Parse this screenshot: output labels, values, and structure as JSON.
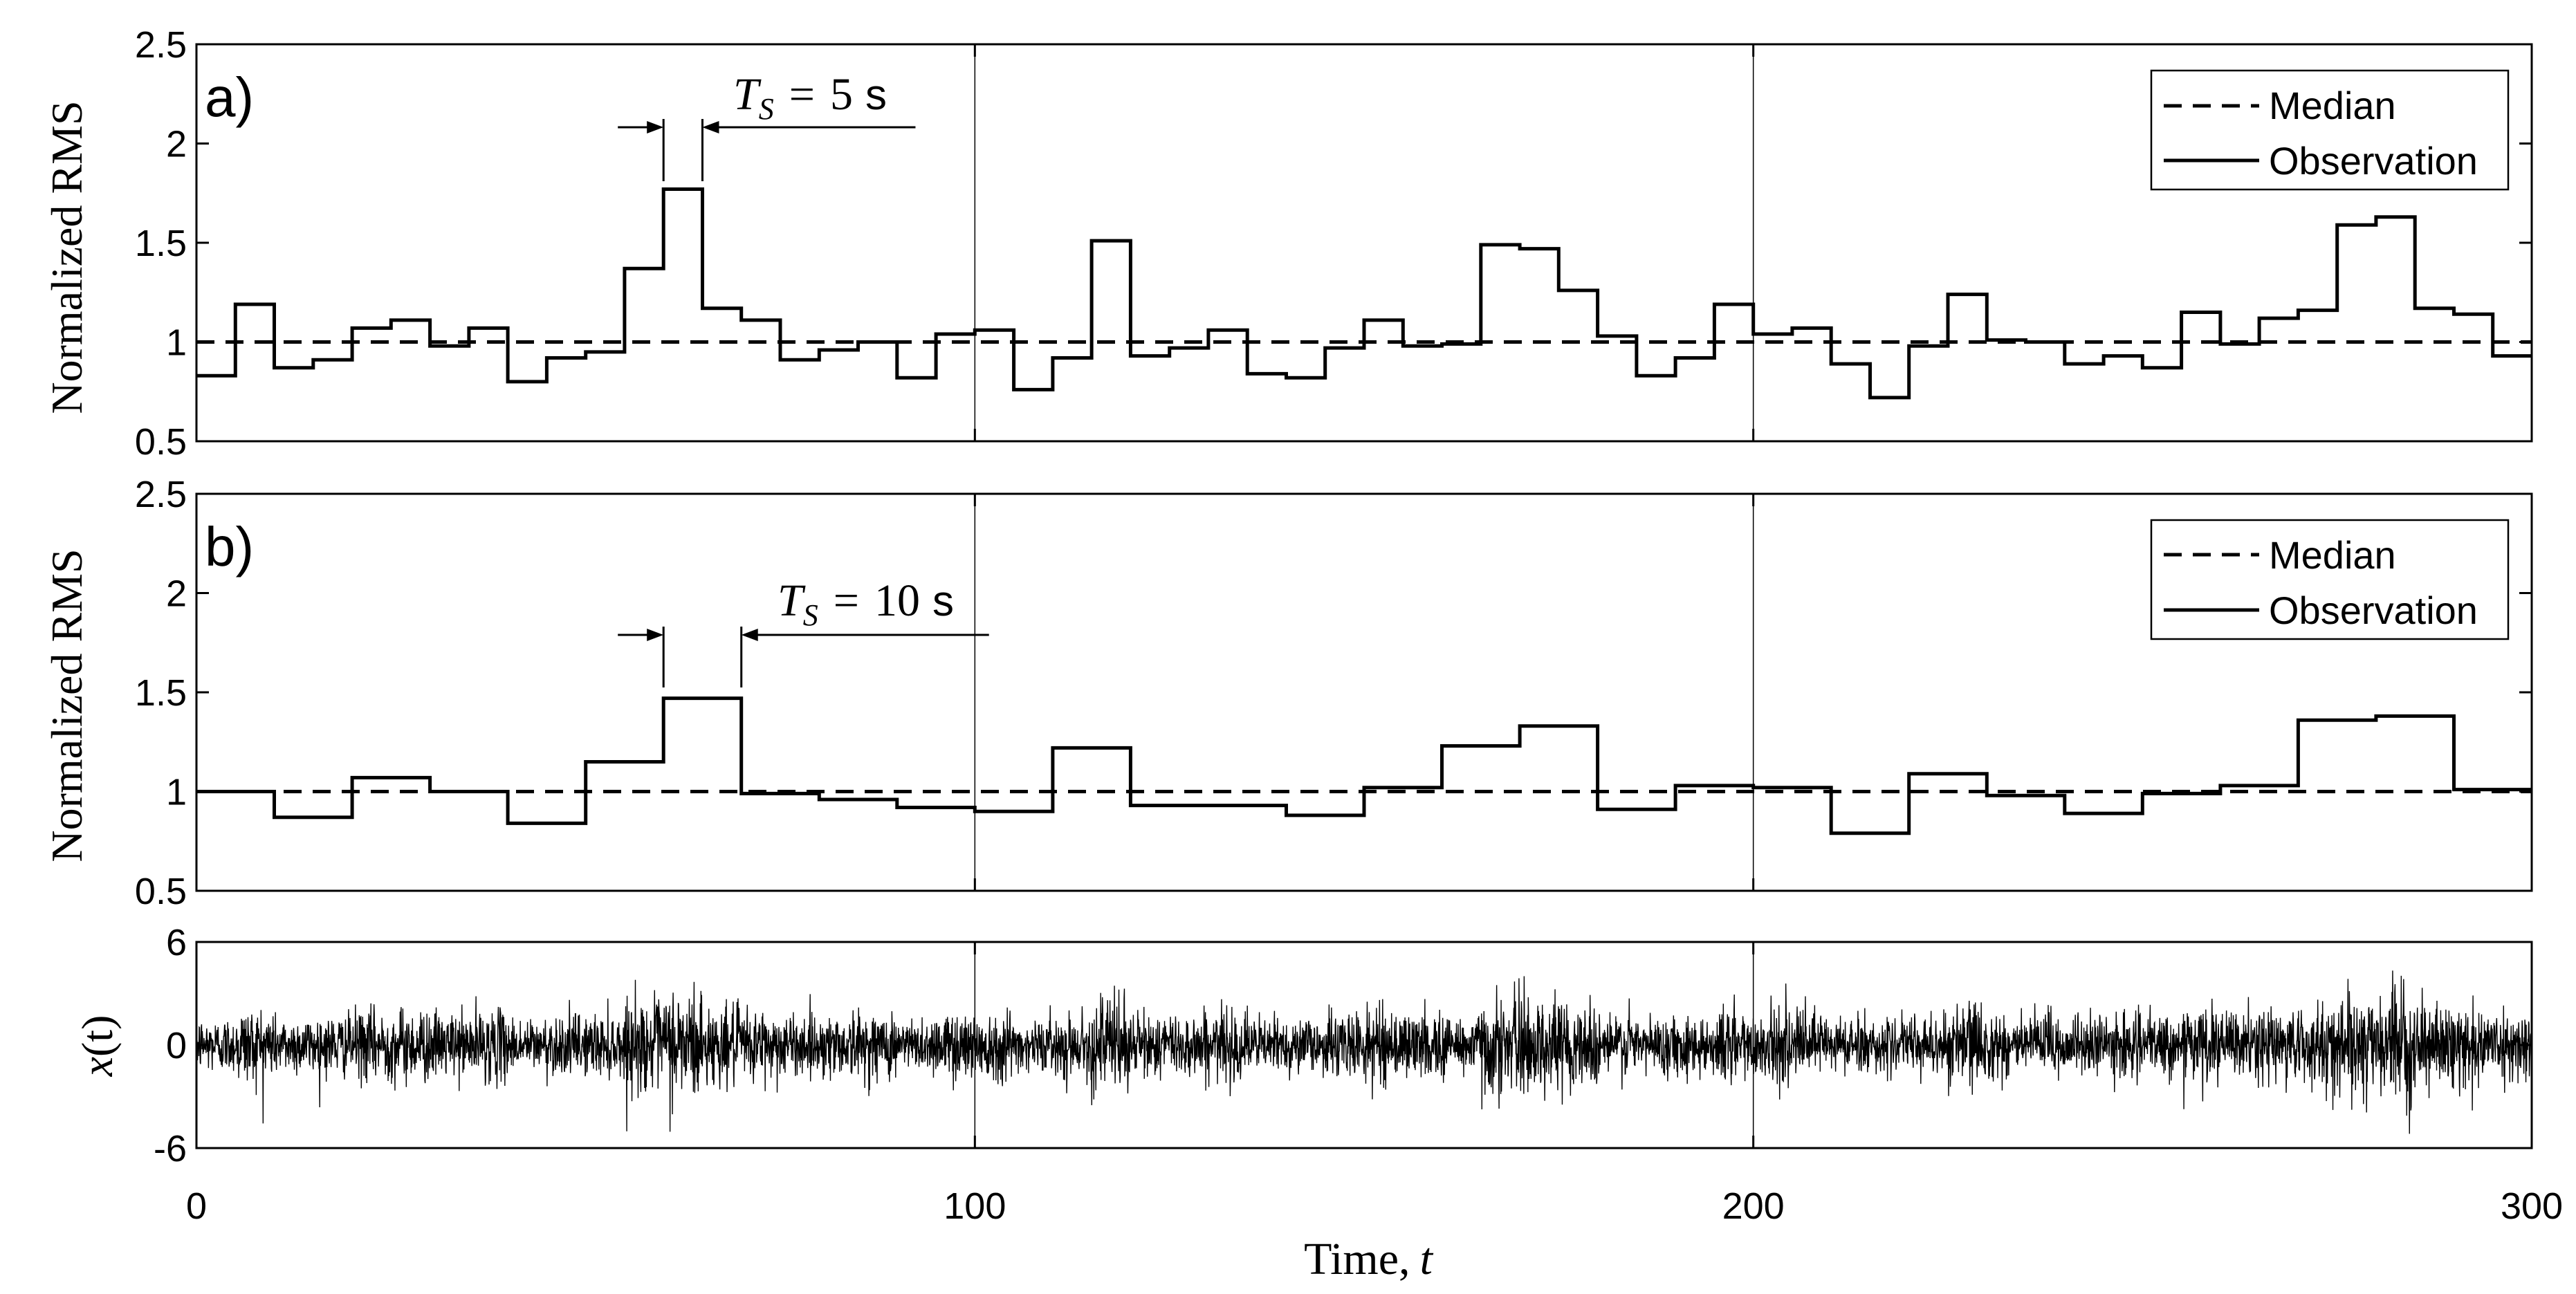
{
  "chart_data": [
    {
      "type": "line",
      "panel_label": "a)",
      "ylabel": "Normalized RMS",
      "xlim": [
        0,
        300
      ],
      "ylim": [
        0.5,
        2.5
      ],
      "yticks": [
        "0.5",
        "1",
        "1.5",
        "2",
        "2.5"
      ],
      "grid": "x",
      "window_seconds": 5,
      "annotation": {
        "symbol": "T",
        "subscript": "S",
        "equals": "=",
        "value": "5",
        "unit": "s"
      },
      "legend": {
        "position": "top-right",
        "entries": [
          "Median",
          "Observation"
        ]
      },
      "median": 1.0,
      "series": [
        {
          "name": "Observation",
          "style": "stairs",
          "values": [
            0.83,
            1.19,
            0.87,
            0.91,
            1.07,
            1.11,
            0.98,
            1.07,
            0.8,
            0.92,
            0.95,
            1.37,
            1.77,
            1.17,
            1.11,
            0.91,
            0.96,
            1.0,
            0.82,
            1.04,
            1.06,
            0.76,
            0.92,
            1.51,
            0.93,
            0.97,
            1.06,
            0.84,
            0.82,
            0.97,
            1.11,
            0.98,
            0.99,
            1.49,
            1.47,
            1.26,
            1.03,
            0.83,
            0.92,
            1.19,
            1.04,
            1.07,
            0.89,
            0.72,
            0.98,
            1.24,
            1.01,
            1.0,
            0.89,
            0.93,
            0.87,
            1.15,
            0.99,
            1.12,
            1.16,
            1.59,
            1.63,
            1.17,
            1.14,
            0.93
          ]
        }
      ]
    },
    {
      "type": "line",
      "panel_label": "b)",
      "ylabel": "Normalized RMS",
      "xlim": [
        0,
        300
      ],
      "ylim": [
        0.5,
        2.5
      ],
      "yticks": [
        "0.5",
        "1",
        "1.5",
        "2",
        "2.5"
      ],
      "grid": "x",
      "window_seconds": 10,
      "annotation": {
        "symbol": "T",
        "subscript": "S",
        "equals": "=",
        "value": "10",
        "unit": "s"
      },
      "legend": {
        "position": "top-right",
        "entries": [
          "Median",
          "Observation"
        ]
      },
      "median": 1.0,
      "series": [
        {
          "name": "Observation",
          "style": "stairs",
          "values": [
            1.0,
            0.87,
            1.07,
            1.0,
            0.84,
            1.15,
            1.47,
            0.99,
            0.96,
            0.92,
            0.9,
            1.22,
            0.93,
            0.93,
            0.88,
            1.02,
            1.23,
            1.33,
            0.91,
            1.03,
            1.02,
            0.79,
            1.09,
            0.98,
            0.89,
            0.99,
            1.03,
            1.36,
            1.38,
            1.01
          ]
        }
      ]
    },
    {
      "type": "line",
      "ylabel": "x(t)",
      "ylabel_var": "x",
      "ylabel_arg": "(t)",
      "xlabel": "Time, t",
      "xlabel_text": "Time,",
      "xlabel_var": "t",
      "xlim": [
        0,
        300
      ],
      "ylim": [
        -6,
        6
      ],
      "yticks": [
        "-6",
        "0",
        "6"
      ],
      "xticks": [
        "0",
        "100",
        "200",
        "300"
      ],
      "grid": "x",
      "series": [
        {
          "name": "x(t)",
          "style": "noise",
          "envelope_rms_5s": [
            0.83,
            1.19,
            0.87,
            0.91,
            1.07,
            1.11,
            0.98,
            1.07,
            0.8,
            0.92,
            0.95,
            1.37,
            1.77,
            1.17,
            1.11,
            0.91,
            0.96,
            1.0,
            0.82,
            1.04,
            1.06,
            0.76,
            0.92,
            1.51,
            0.93,
            0.97,
            1.06,
            0.84,
            0.82,
            0.97,
            1.11,
            0.98,
            0.99,
            1.49,
            1.47,
            1.26,
            1.03,
            0.83,
            0.92,
            1.19,
            1.04,
            1.07,
            0.89,
            0.72,
            0.98,
            1.24,
            1.01,
            1.0,
            0.89,
            0.93,
            0.87,
            1.15,
            0.99,
            1.12,
            1.16,
            1.59,
            1.63,
            1.17,
            1.14,
            0.93
          ]
        }
      ]
    }
  ]
}
